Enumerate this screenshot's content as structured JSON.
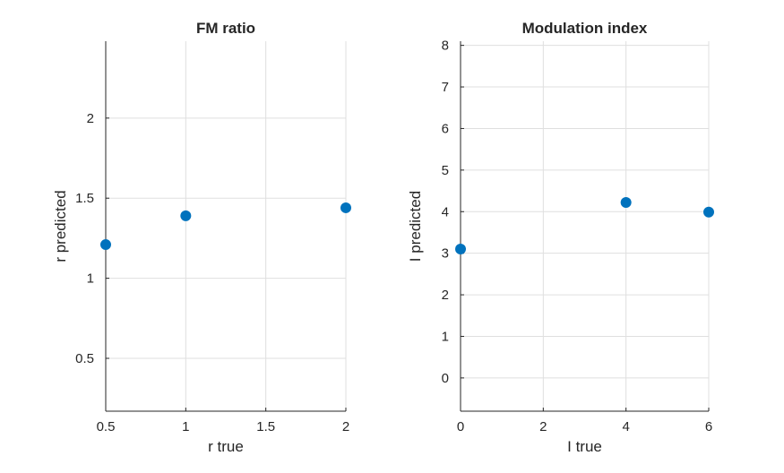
{
  "chart_data": [
    {
      "type": "scatter",
      "title": "FM ratio",
      "xlabel": "r true",
      "ylabel": "r predicted",
      "xlim": [
        0.5,
        2
      ],
      "ylim": [
        0.17,
        2.48
      ],
      "xticks": [
        0.5,
        1,
        1.5,
        2
      ],
      "xtick_labels": [
        "0.5",
        "1",
        "1.5",
        "2"
      ],
      "yticks": [
        0.5,
        1,
        1.5,
        2
      ],
      "ytick_labels": [
        "0.5",
        "1",
        "1.5",
        "2"
      ],
      "grid": true,
      "color": "#0072bd",
      "points": [
        {
          "x": 0.5,
          "y": 1.21
        },
        {
          "x": 1,
          "y": 1.39
        },
        {
          "x": 2,
          "y": 1.44
        }
      ]
    },
    {
      "type": "scatter",
      "title": "Modulation index",
      "xlabel": "I true",
      "ylabel": "I predicted",
      "xlim": [
        0,
        6
      ],
      "ylim": [
        -0.8,
        8.1
      ],
      "xticks": [
        0,
        2,
        4,
        6
      ],
      "xtick_labels": [
        "0",
        "2",
        "4",
        "6"
      ],
      "yticks": [
        0,
        1,
        2,
        3,
        4,
        5,
        6,
        7,
        8
      ],
      "ytick_labels": [
        "0",
        "1",
        "2",
        "3",
        "4",
        "5",
        "6",
        "7",
        "8"
      ],
      "grid": true,
      "color": "#0072bd",
      "points": [
        {
          "x": 0,
          "y": 3.1
        },
        {
          "x": 4,
          "y": 4.22
        },
        {
          "x": 6,
          "y": 3.99
        }
      ]
    }
  ]
}
